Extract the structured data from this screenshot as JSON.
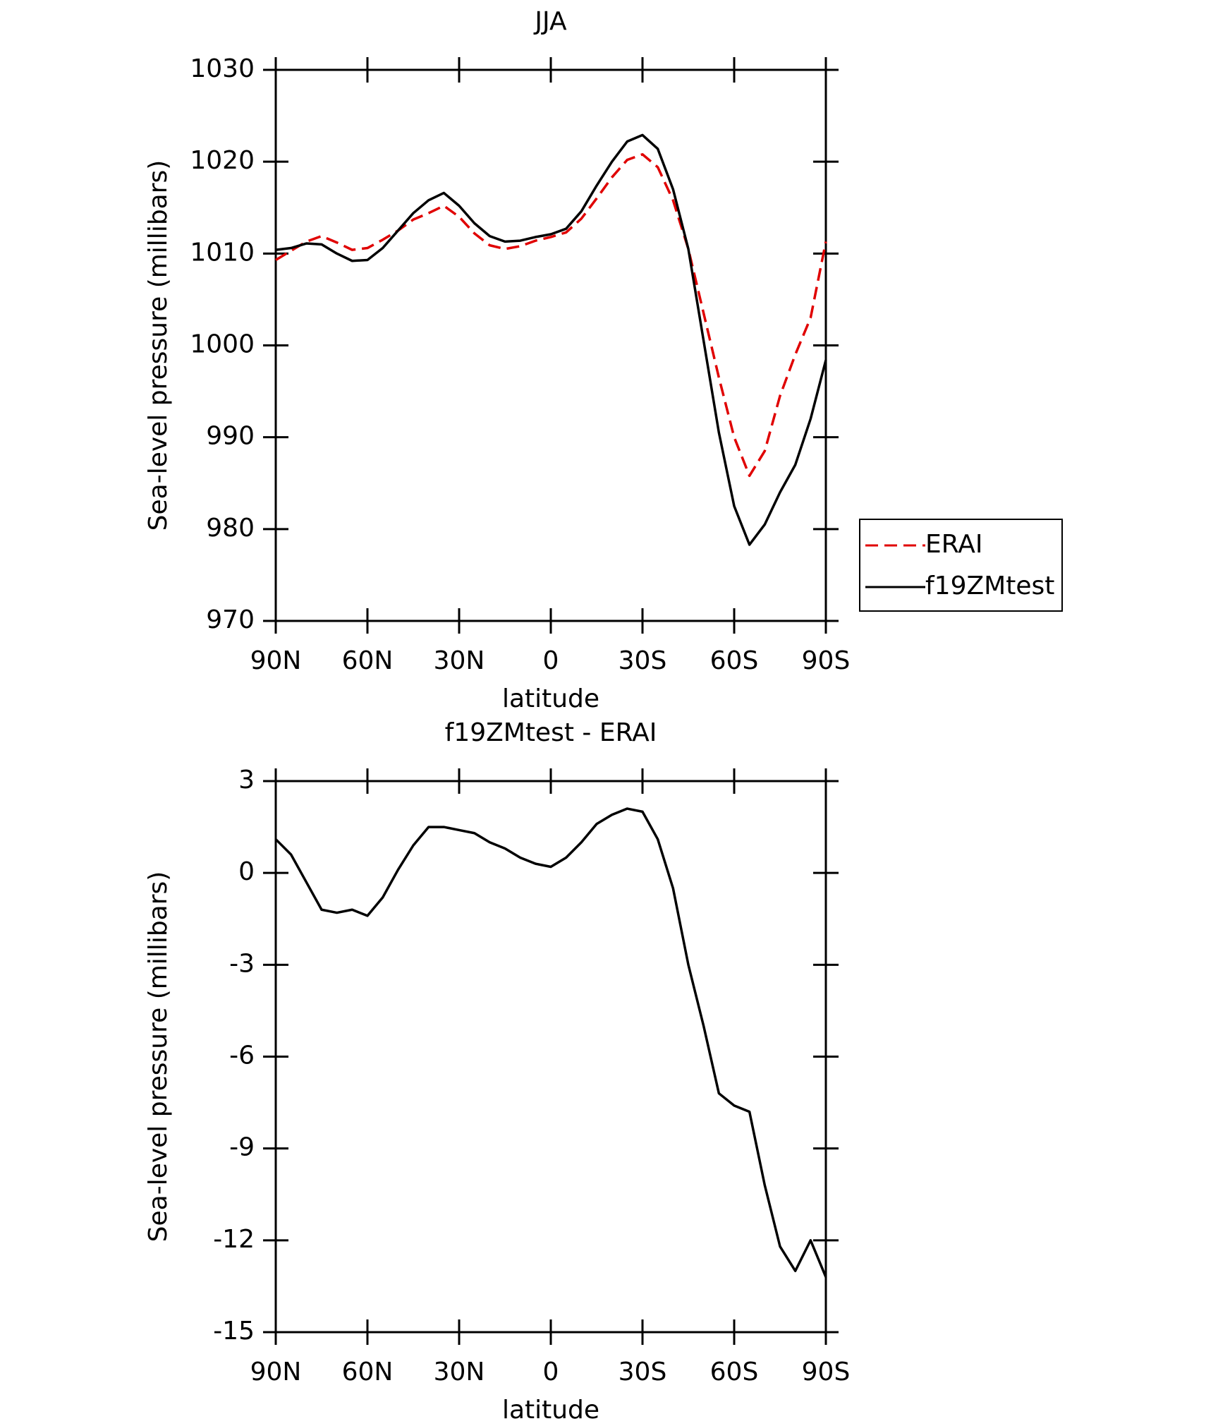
{
  "chart_data": [
    {
      "type": "line",
      "title": "JJA",
      "xlabel": "latitude",
      "ylabel": "Sea-level pressure (millibars)",
      "x": [
        90,
        85,
        80,
        75,
        70,
        65,
        60,
        55,
        50,
        45,
        40,
        35,
        30,
        25,
        20,
        15,
        10,
        5,
        0,
        -5,
        -10,
        -15,
        -20,
        -25,
        -30,
        -35,
        -40,
        -45,
        -50,
        -55,
        -60,
        -65,
        -70,
        -75,
        -80,
        -85,
        -90
      ],
      "series": [
        {
          "name": "ERAI",
          "color": "#e00000",
          "dashed": true,
          "values": [
            1009.3,
            1010.3,
            1011.3,
            1011.9,
            1011.2,
            1010.4,
            1010.6,
            1011.5,
            1012.5,
            1013.7,
            1014.4,
            1015.2,
            1014.0,
            1012.2,
            1010.9,
            1010.5,
            1010.8,
            1011.4,
            1011.8,
            1012.3,
            1013.8,
            1016.0,
            1018.3,
            1020.2,
            1020.8,
            1019.4,
            1015.8,
            1010.5,
            1003.5,
            996.5,
            990.0,
            985.8,
            988.5,
            994.5,
            999.0,
            1003.0,
            1011.3
          ]
        },
        {
          "name": "f19ZMtest",
          "color": "#000000",
          "dashed": false,
          "values": [
            1010.4,
            1010.6,
            1011.1,
            1011.0,
            1010.0,
            1009.2,
            1009.3,
            1010.6,
            1012.5,
            1014.4,
            1015.8,
            1016.6,
            1015.2,
            1013.3,
            1011.9,
            1011.3,
            1011.4,
            1011.8,
            1012.1,
            1012.7,
            1014.6,
            1017.4,
            1020.0,
            1022.2,
            1022.9,
            1021.4,
            1017.0,
            1010.5,
            1000.5,
            990.5,
            982.5,
            978.3,
            980.5,
            984.0,
            987.0,
            992.0,
            998.4
          ]
        }
      ],
      "xlim": [
        90,
        -90
      ],
      "xticks": [
        {
          "value": 90,
          "label": "90N"
        },
        {
          "value": 60,
          "label": "60N"
        },
        {
          "value": 30,
          "label": "30N"
        },
        0,
        {
          "value": -30,
          "label": "30S"
        },
        {
          "value": -60,
          "label": "60S"
        },
        {
          "value": -90,
          "label": "90S"
        }
      ],
      "ylim": [
        970,
        1030
      ],
      "yticks": [
        970,
        980,
        990,
        1000,
        1010,
        1020,
        1030
      ],
      "legend": "right"
    },
    {
      "type": "line",
      "title": "f19ZMtest - ERAI",
      "xlabel": "latitude",
      "ylabel": "Sea-level pressure (millibars)",
      "x": [
        90,
        85,
        80,
        75,
        70,
        65,
        60,
        55,
        50,
        45,
        40,
        35,
        30,
        25,
        20,
        15,
        10,
        5,
        0,
        -5,
        -10,
        -15,
        -20,
        -25,
        -30,
        -35,
        -40,
        -45,
        -50,
        -55,
        -60,
        -65,
        -70,
        -75,
        -80,
        -85,
        -90
      ],
      "series": [
        {
          "color": "#000000",
          "dashed": false,
          "values": [
            1.1,
            0.6,
            -0.3,
            -1.2,
            -1.3,
            -1.2,
            -1.4,
            -0.8,
            0.1,
            0.9,
            1.5,
            1.5,
            1.4,
            1.3,
            1.0,
            0.8,
            0.5,
            0.3,
            0.2,
            0.5,
            1.0,
            1.6,
            1.9,
            2.1,
            2.0,
            1.1,
            -0.5,
            -3.0,
            -5.0,
            -7.2,
            -7.6,
            -7.8,
            -10.2,
            -12.2,
            -13.0,
            -12.0,
            -13.2
          ]
        }
      ],
      "xlim": [
        90,
        -90
      ],
      "xticks": [
        {
          "value": 90,
          "label": "90N"
        },
        {
          "value": 60,
          "label": "60N"
        },
        {
          "value": 30,
          "label": "30N"
        },
        0,
        {
          "value": -30,
          "label": "30S"
        },
        {
          "value": -60,
          "label": "60S"
        },
        {
          "value": -90,
          "label": "90S"
        }
      ],
      "ylim": [
        -15,
        3
      ],
      "yticks": [
        -15,
        -12,
        -9,
        -6,
        -3,
        0,
        3
      ]
    }
  ]
}
